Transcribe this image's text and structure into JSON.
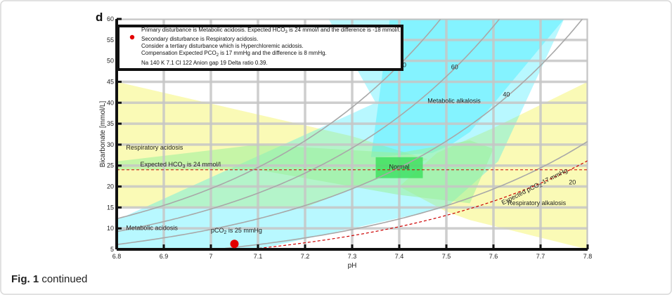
{
  "panel_label": "d",
  "caption": {
    "bold": "Fig. 1",
    "text": "continued"
  },
  "info_box": {
    "line1": {
      "pre": "Primary disturbance is Metabolic acidosis. Expected HCO",
      "sub": "3",
      "post": " is 24 mmol/l and the difference is -18 mmol/l."
    },
    "line2": "Secondary disturbance is Respiratory acidosis.",
    "line3": "Consider a tertiary disturbance which is Hyperchloremic acidosis.",
    "line4": {
      "pre": "Compensation Expected PCO",
      "sub": "2",
      "post": " is 17 mmHg and the difference is 8 mmHg."
    },
    "line5": "Na 140  K 7.1 Cl 122  Anion gap 19 Delta ratio 0.39."
  },
  "colors": {
    "cyan": "#00e5ff",
    "yellow": "#f5f57a",
    "green_band": "#9af09a",
    "normal_box": "#33dd55",
    "isobar": "#a8a8a8",
    "red_line": "#cc0000",
    "point": "#e30000",
    "grid": "#c6c6c6",
    "axis": "#111111"
  },
  "chart_data": {
    "type": "scatter",
    "xlabel": "pH",
    "ylabel": "Bicarbonate [mmol/L]",
    "xlim": [
      6.8,
      7.8
    ],
    "ylim": [
      5,
      60
    ],
    "x_ticks": [
      6.8,
      6.9,
      7.0,
      7.1,
      7.2,
      7.3,
      7.4,
      7.5,
      7.6,
      7.7,
      7.8
    ],
    "x_tick_labels": [
      "6.8",
      "6.9",
      "7",
      "7.1",
      "7.2",
      "7.3",
      "7.4",
      "7.5",
      "7.6",
      "7.7",
      "7.8"
    ],
    "y_ticks": [
      5,
      10,
      15,
      20,
      25,
      30,
      35,
      40,
      45,
      50,
      55,
      60
    ],
    "y_tick_labels": [
      "5",
      "10",
      "15",
      "20",
      "25",
      "30",
      "35",
      "40",
      "45",
      "50",
      "55",
      "60"
    ],
    "grid": true,
    "isobars_pco2_mmHg": [
      20,
      40,
      60,
      80
    ],
    "isobar_labels": [
      {
        "text": "80",
        "x": 7.4,
        "y": 48.5
      },
      {
        "text": "60",
        "x": 7.51,
        "y": 48.0
      },
      {
        "text": "40",
        "x": 7.62,
        "y": 41.5
      },
      {
        "text": "20",
        "x": 7.76,
        "y": 20.5
      }
    ],
    "expected_hco3": {
      "value": 24,
      "label_pre": "Expected HCO",
      "label_sub": "3",
      "label_post": " is 24 mmol/l",
      "label_x": 6.85,
      "label_y": 24.8
    },
    "expected_pco2": {
      "value": 17,
      "label_pre": "Expected pCO",
      "label_sub": "2",
      "label_post": " 17 mmHg"
    },
    "point": {
      "ph": 7.05,
      "hco3": 6.3,
      "pco2_label_pre": "pCO",
      "pco2_label_sub": "2",
      "pco2_label_post": " is 25 mmHg",
      "label_x": 7.0,
      "label_y": 9.0
    },
    "normal_box": {
      "x": [
        7.35,
        7.45
      ],
      "y": [
        22,
        27
      ],
      "label": "Normal"
    },
    "regions": {
      "metabolic_alkalosis": {
        "label": "Metabolic alkalosis",
        "x": 7.46,
        "y": 40
      },
      "respiratory_acidosis": {
        "label": "Respiratory acidosis",
        "x": 6.82,
        "y": 28.8
      },
      "metabolic_acidosis": {
        "label": "Metabolic acidosis",
        "x": 6.82,
        "y": 9.6
      },
      "respiratory_alkalosis": {
        "label": "Respiratory alkalosis",
        "x": 7.63,
        "y": 15.6
      }
    },
    "cyan_polygon": [
      [
        6.8,
        5
      ],
      [
        7.1,
        5
      ],
      [
        7.5,
        15
      ],
      [
        7.61,
        26
      ],
      [
        7.75,
        60
      ],
      [
        7.25,
        60
      ],
      [
        7.35,
        40
      ],
      [
        6.8,
        12
      ]
    ],
    "cyan_upper_polygon": [
      [
        7.38,
        60
      ],
      [
        7.75,
        60
      ],
      [
        7.55,
        33
      ],
      [
        7.51,
        30
      ],
      [
        7.47,
        28
      ],
      [
        7.34,
        27
      ]
    ],
    "yellow_left_polygon": [
      [
        6.8,
        45
      ],
      [
        6.8,
        15
      ],
      [
        7.2,
        15
      ],
      [
        7.46,
        26.5
      ],
      [
        7.3,
        32
      ]
    ],
    "yellow_right_polygon": [
      [
        7.8,
        45
      ],
      [
        7.8,
        5
      ],
      [
        7.55,
        12
      ],
      [
        7.5,
        14
      ],
      [
        7.4,
        20
      ],
      [
        7.48,
        28
      ],
      [
        7.6,
        34
      ]
    ],
    "green_polygon": [
      [
        6.8,
        24
      ],
      [
        7.1,
        24
      ],
      [
        7.4,
        18
      ],
      [
        7.55,
        16
      ],
      [
        7.6,
        29
      ],
      [
        7.55,
        31
      ],
      [
        7.4,
        28
      ],
      [
        7.1,
        30
      ],
      [
        6.8,
        26
      ]
    ]
  }
}
